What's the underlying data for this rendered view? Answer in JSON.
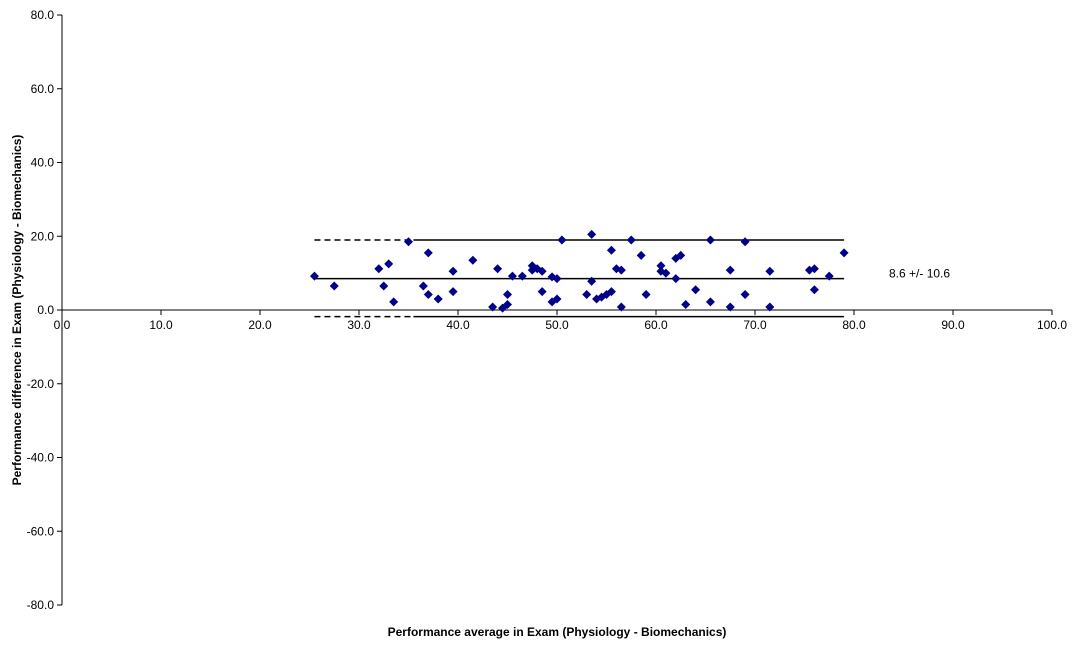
{
  "chart_data": {
    "type": "scatter",
    "title": "",
    "xlabel": "Performance average in Exam (Physiology - Biomechanics)",
    "ylabel": "Performance difference in Exam (Physiology - Biomechanics)",
    "xlim": [
      0,
      100
    ],
    "ylim": [
      -80,
      80
    ],
    "x_ticks": [
      0,
      10,
      20,
      30,
      40,
      50,
      60,
      70,
      80,
      90,
      100
    ],
    "x_tick_labels": [
      "0.0",
      "10.0",
      "20.0",
      "30.0",
      "40.0",
      "50.0",
      "60.0",
      "70.0",
      "80.0",
      "90.0",
      "100.0"
    ],
    "y_ticks": [
      80,
      60,
      40,
      20,
      0,
      -20,
      -40,
      -60,
      -80
    ],
    "y_tick_labels": [
      "80.0",
      "60.0",
      "40.0",
      "20.0",
      "0.0",
      "-20.0",
      "-40.0",
      "-60.0",
      "-80.0"
    ],
    "grid": false,
    "legend": "none",
    "marker_color": "#00008B",
    "points": [
      [
        25.5,
        9.2
      ],
      [
        27.5,
        6.5
      ],
      [
        32.0,
        11.2
      ],
      [
        32.5,
        6.5
      ],
      [
        33.0,
        12.5
      ],
      [
        33.5,
        2.2
      ],
      [
        35.0,
        18.5
      ],
      [
        36.5,
        6.5
      ],
      [
        37.0,
        4.2
      ],
      [
        37.0,
        15.5
      ],
      [
        38.0,
        3.0
      ],
      [
        39.5,
        10.5
      ],
      [
        39.5,
        5.0
      ],
      [
        41.5,
        13.5
      ],
      [
        43.5,
        0.8
      ],
      [
        44.0,
        11.2
      ],
      [
        44.5,
        0.5
      ],
      [
        45.0,
        1.5
      ],
      [
        45.0,
        4.2
      ],
      [
        45.5,
        9.2
      ],
      [
        46.5,
        9.2
      ],
      [
        47.5,
        12.0
      ],
      [
        47.5,
        10.8
      ],
      [
        48.0,
        11.2
      ],
      [
        48.5,
        10.5
      ],
      [
        48.5,
        5.0
      ],
      [
        49.5,
        9.0
      ],
      [
        49.5,
        2.2
      ],
      [
        50.0,
        8.5
      ],
      [
        50.0,
        3.0
      ],
      [
        50.5,
        19.0
      ],
      [
        53.0,
        4.2
      ],
      [
        53.5,
        20.5
      ],
      [
        53.5,
        7.8
      ],
      [
        54.0,
        3.0
      ],
      [
        54.5,
        3.5
      ],
      [
        55.0,
        4.2
      ],
      [
        55.5,
        5.0
      ],
      [
        55.5,
        16.2
      ],
      [
        56.0,
        11.2
      ],
      [
        56.5,
        10.8
      ],
      [
        56.5,
        0.8
      ],
      [
        57.5,
        19.0
      ],
      [
        58.5,
        14.8
      ],
      [
        59.0,
        4.2
      ],
      [
        60.5,
        12.0
      ],
      [
        60.5,
        10.5
      ],
      [
        61.0,
        10.0
      ],
      [
        62.0,
        14.0
      ],
      [
        62.0,
        8.5
      ],
      [
        62.5,
        14.8
      ],
      [
        63.0,
        1.5
      ],
      [
        64.0,
        5.5
      ],
      [
        65.5,
        19.0
      ],
      [
        65.5,
        2.2
      ],
      [
        67.5,
        0.8
      ],
      [
        67.5,
        10.8
      ],
      [
        69.0,
        18.5
      ],
      [
        69.0,
        4.2
      ],
      [
        71.5,
        10.5
      ],
      [
        71.5,
        0.8
      ],
      [
        75.5,
        10.8
      ],
      [
        76.0,
        11.2
      ],
      [
        76.0,
        5.5
      ],
      [
        77.5,
        9.2
      ],
      [
        79.0,
        15.5
      ]
    ],
    "lines": [
      {
        "y": 19.0,
        "x_solid": [
          35.5,
          79.0
        ],
        "x_dashed": [
          25.5,
          35.5
        ]
      },
      {
        "y": 8.5,
        "x_solid": [
          25.5,
          79.0
        ],
        "x_dashed": null
      },
      {
        "y": -1.8,
        "x_solid": [
          35.5,
          79.0
        ],
        "x_dashed": [
          25.5,
          35.5
        ]
      }
    ],
    "annotation": "8.6 +/- 10.6"
  }
}
